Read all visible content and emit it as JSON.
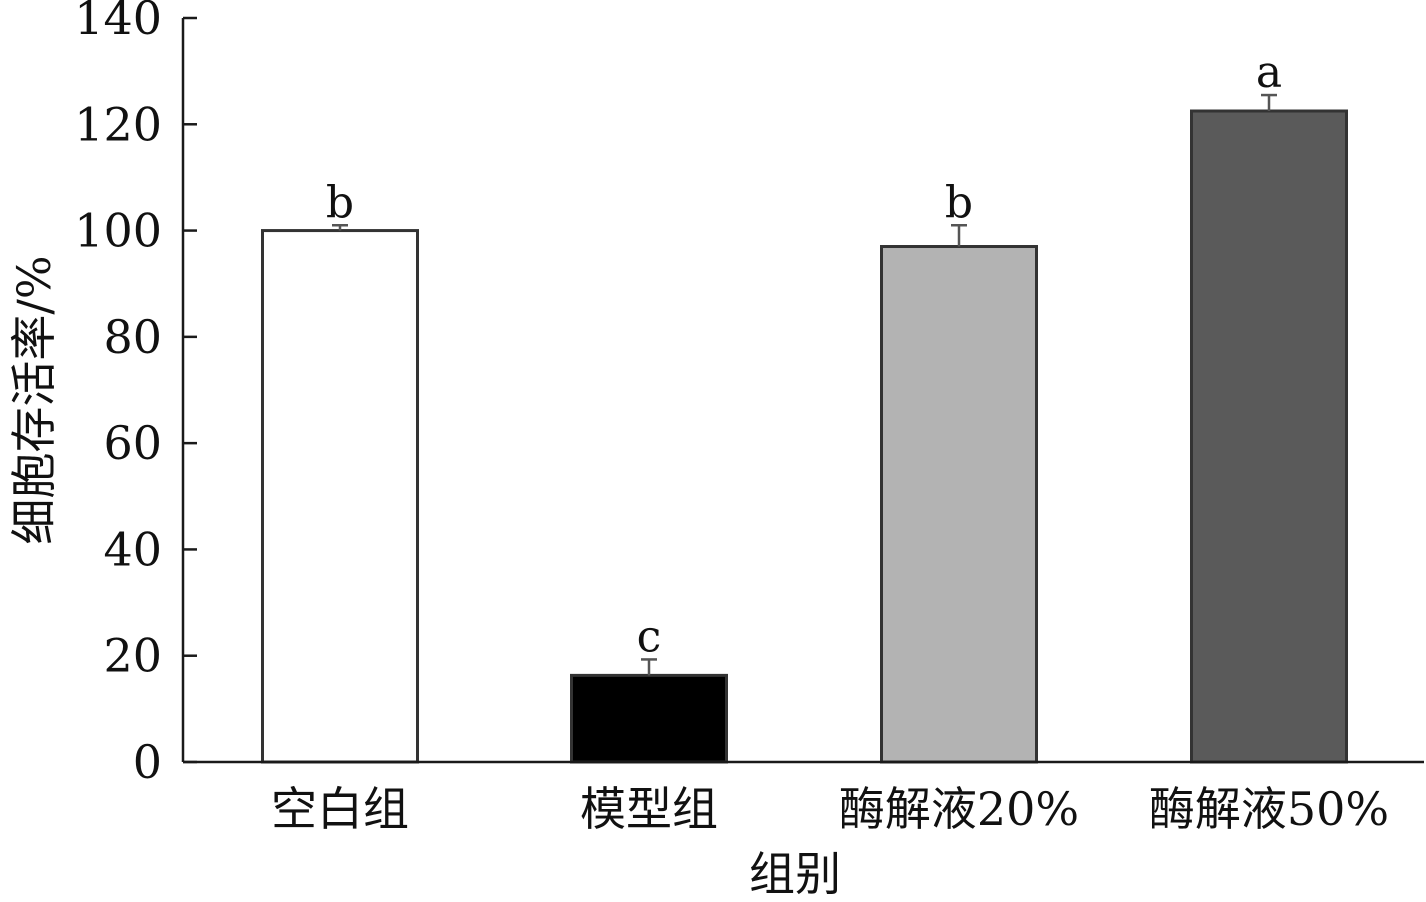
{
  "chart_data": {
    "type": "bar",
    "categories": [
      "空白组",
      "模型组",
      "酶解液20%",
      "酶解液50%"
    ],
    "values": [
      100,
      16.3,
      97,
      122.5
    ],
    "errors": [
      1,
      3,
      4,
      3
    ],
    "significance": [
      "b",
      "c",
      "b",
      "a"
    ],
    "colors": [
      "#ffffff",
      "#000000",
      "#b3b3b3",
      "#5a5a5a"
    ],
    "xlabel": "组别",
    "ylabel": "细胞存活率/%",
    "ylim": [
      0,
      140
    ],
    "yticks": [
      0,
      20,
      40,
      60,
      80,
      100,
      120,
      140
    ],
    "grid": false
  }
}
